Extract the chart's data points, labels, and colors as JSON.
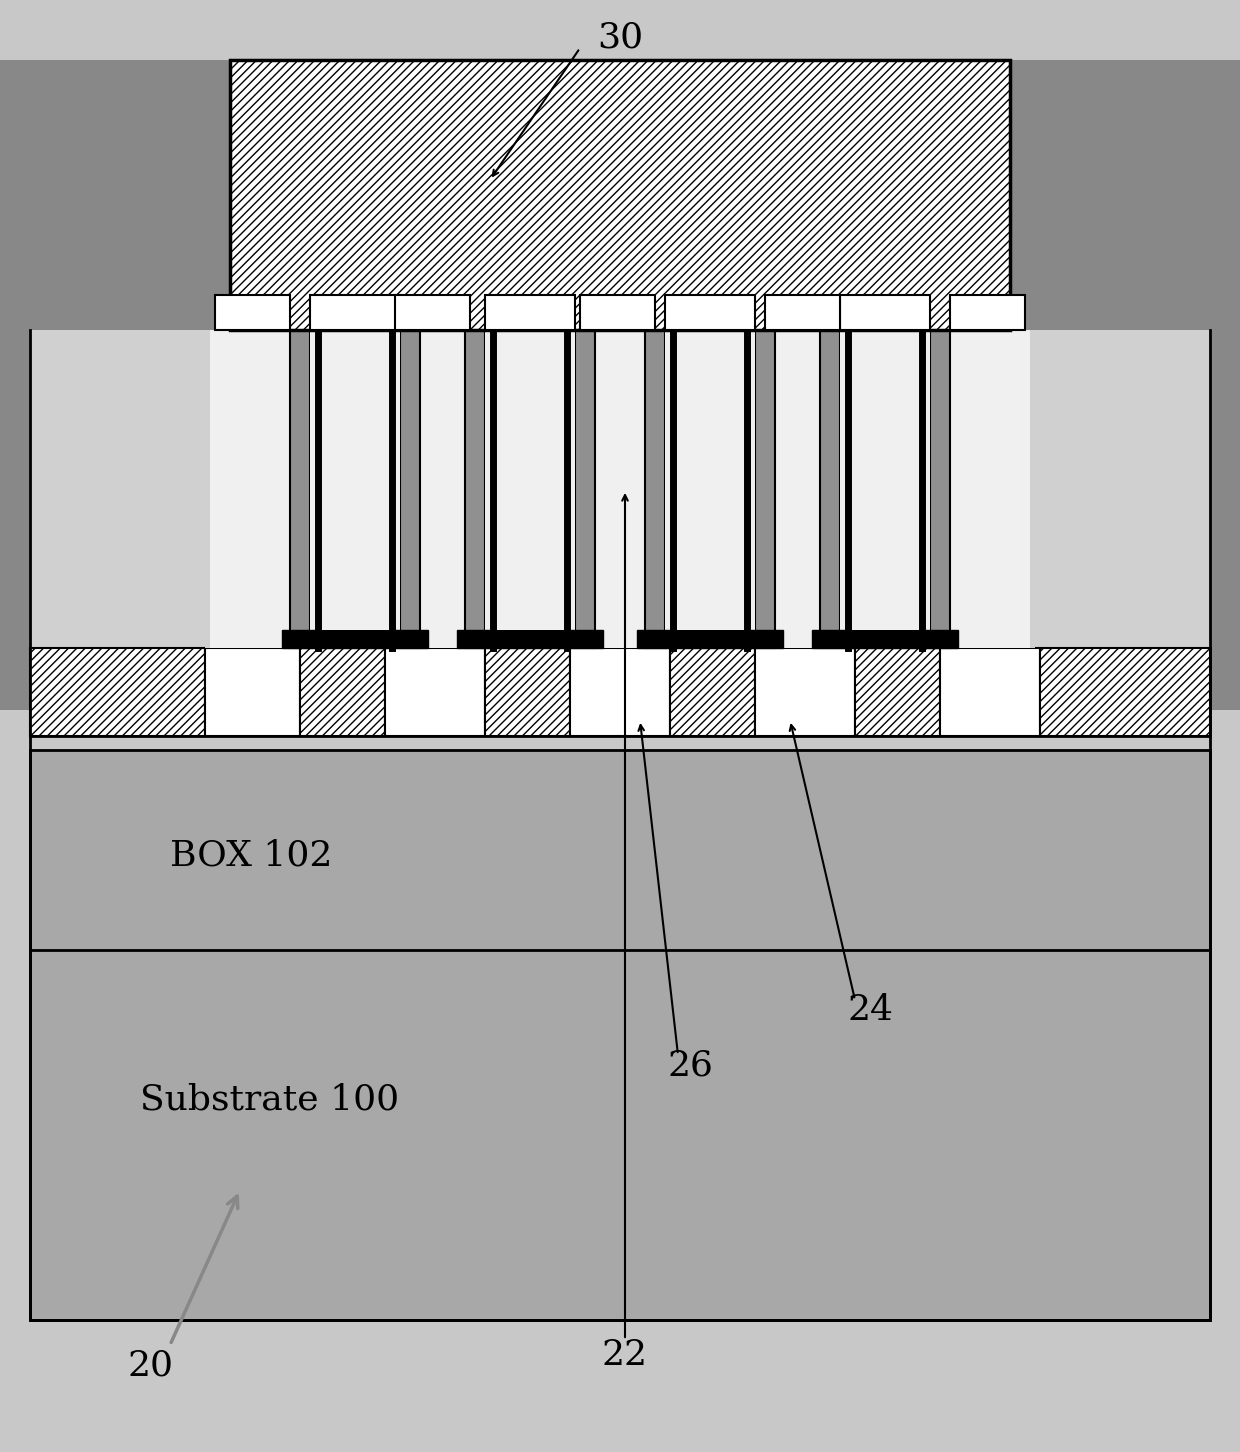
{
  "fig_width": 12.4,
  "fig_height": 14.52,
  "dpi": 100,
  "bg_gray": "#b0b0b0",
  "outer_dark_gray": "#888888",
  "substrate_gray": "#a8a8a8",
  "box_gray": "#b8b8b8",
  "ild_light_gray": "#d0d0d0",
  "gate_spacer_gray": "#909090",
  "metal_white": "#f0f0f0",
  "black": "#000000",
  "white": "#ffffff",
  "hatch_pattern": "////",
  "hatch_dense": "//////",
  "font_size": 26
}
